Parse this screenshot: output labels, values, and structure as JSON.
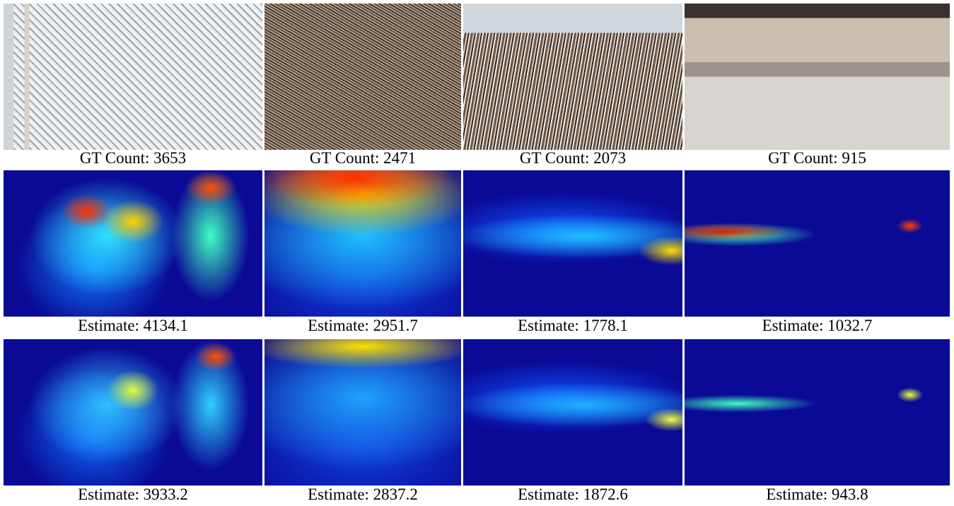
{
  "rows": [
    [
      "GT Count: 3653",
      "GT Count: 2471",
      "GT Count: 2073",
      "GT Count: 915"
    ],
    [
      "Estimate: 4134.1",
      "Estimate: 2951.7",
      "Estimate: 1778.1",
      "Estimate: 1032.7"
    ],
    [
      "Estimate: 3933.2",
      "Estimate: 2837.2",
      "Estimate: 1872.6",
      "Estimate: 943.8"
    ]
  ]
}
